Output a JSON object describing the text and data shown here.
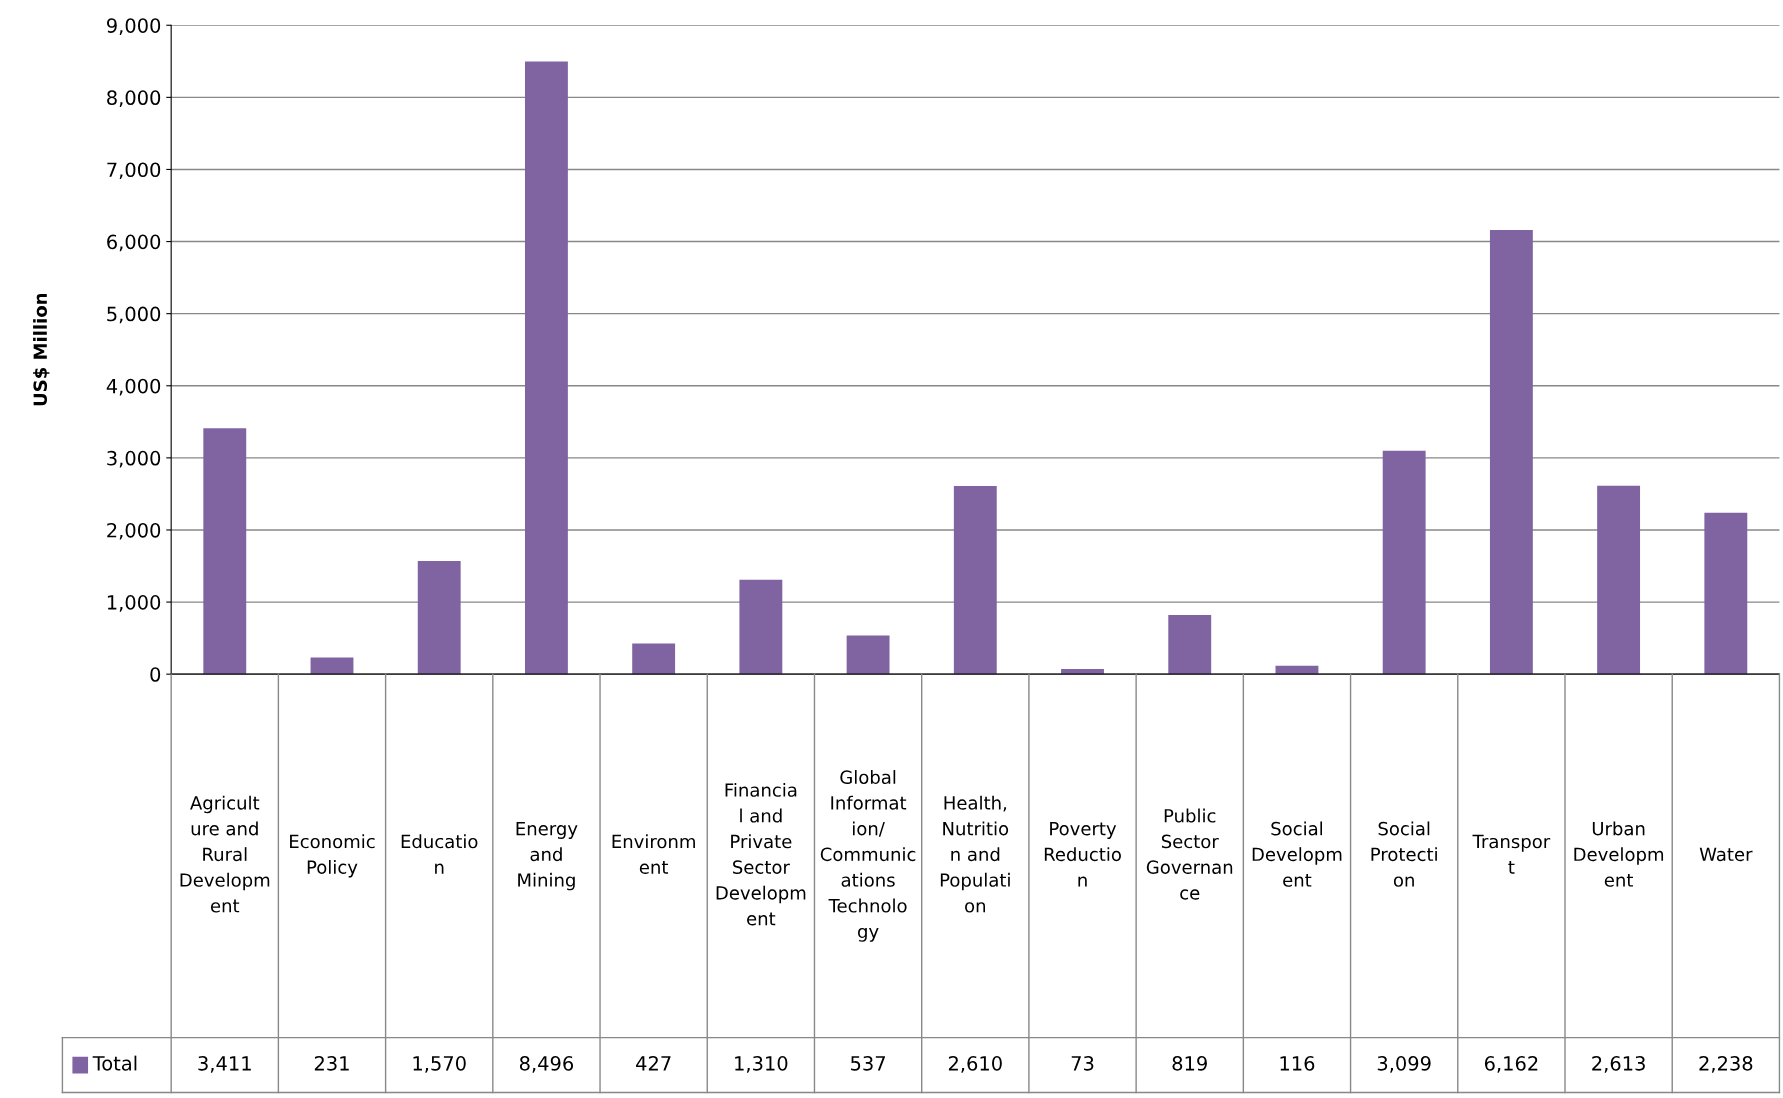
{
  "chart_data": {
    "type": "bar",
    "ylabel": "US$ Million",
    "categories": [
      "Agriculture and Rural Development",
      "Economic Policy",
      "Education",
      "Energy and Mining",
      "Environment",
      "Financial and Private Sector Development",
      "Global Information/Communications Technology",
      "Health, Nutrition and Population",
      "Poverty Reduction",
      "Public Sector Governance",
      "Social Development",
      "Social Protection",
      "Transport",
      "Urban Development",
      "Water"
    ],
    "series": [
      {
        "name": "Total",
        "color": "#8064a2",
        "values": [
          3411,
          231,
          1570,
          8496,
          427,
          1310,
          537,
          2610,
          73,
          819,
          116,
          3099,
          6162,
          2613,
          2238
        ],
        "value_labels": [
          "3,411",
          "231",
          "1,570",
          "8,496",
          "427",
          "1,310",
          "537",
          "2,610",
          "73",
          "819",
          "116",
          "3,099",
          "6,162",
          "2,613",
          "2,238"
        ]
      }
    ],
    "ylim": [
      0,
      9000
    ],
    "yticks": [
      0,
      {
        "value": 1000,
        "label": "1,000"
      },
      {
        "value": 2000,
        "label": "2,000"
      },
      {
        "value": 3000,
        "label": "3,000"
      },
      {
        "value": 4000,
        "label": "4,000"
      },
      {
        "value": 5000,
        "label": "5,000"
      },
      {
        "value": 6000,
        "label": "6,000"
      },
      {
        "value": 7000,
        "label": "7,000"
      },
      {
        "value": 8000,
        "label": "8,000"
      },
      {
        "value": 9000,
        "label": "9,000"
      }
    ],
    "grid": "y",
    "legend": "bottom"
  }
}
